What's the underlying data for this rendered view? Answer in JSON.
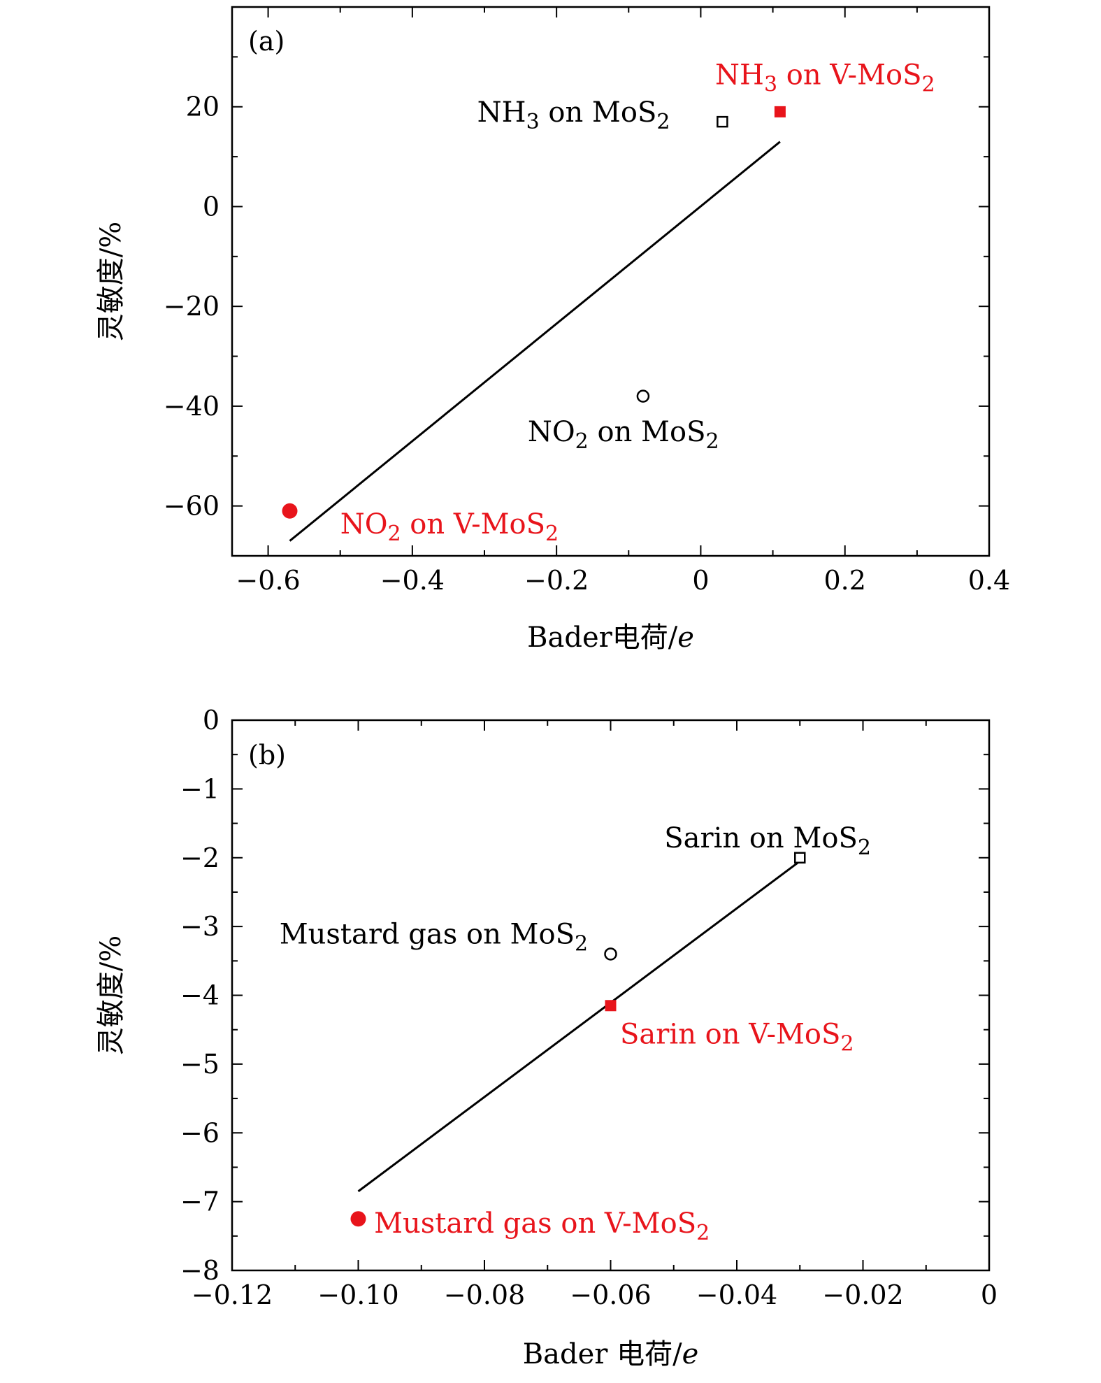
{
  "colors": {
    "highlight": "#e8141b",
    "base": "#000000"
  },
  "chart_data": [
    {
      "type": "scatter",
      "panel_label": "(a)",
      "xlabel": {
        "main": "Bader电荷/",
        "italic": "e"
      },
      "ylabel": "灵敏度/%",
      "xlim": [
        -0.65,
        0.4
      ],
      "ylim": [
        -70,
        40
      ],
      "xticks": [
        -0.6,
        -0.4,
        -0.2,
        0,
        0.2,
        0.4
      ],
      "xtick_labels": [
        "−0.6",
        "−0.4",
        "−0.2",
        "0",
        "0.2",
        "0.4"
      ],
      "yticks": [
        20,
        0,
        -20,
        -40,
        -60
      ],
      "ytick_labels": [
        "20",
        "0",
        "−20",
        "−40",
        "−60"
      ],
      "grid": false,
      "points": [
        {
          "label": "NH3 on MoS2",
          "x": 0.03,
          "y": 17,
          "marker": "open-square",
          "color": "#000000"
        },
        {
          "label": "NH3 on V-MoS2",
          "x": 0.11,
          "y": 19,
          "marker": "filled-square",
          "color": "#e8141b"
        },
        {
          "label": "NO2 on MoS2",
          "x": -0.08,
          "y": -38,
          "marker": "open-circle",
          "color": "#000000"
        },
        {
          "label": "NO2 on V-MoS2",
          "x": -0.57,
          "y": -61,
          "marker": "filled-circle",
          "color": "#e8141b"
        }
      ],
      "fit_line": {
        "x": [
          -0.57,
          0.11
        ],
        "y": [
          -67,
          13
        ]
      },
      "annotations": [
        {
          "main": "NH",
          "sub": "3",
          "rest": " on V-MoS",
          "sub2": "2",
          "color": "#e8141b",
          "x": 0.02,
          "y": 24.5
        },
        {
          "main": "NH",
          "sub": "3",
          "rest": " on MoS",
          "sub2": "2",
          "color": "#000000",
          "x": -0.31,
          "y": 17
        },
        {
          "main": "NO",
          "sub": "2",
          "rest": " on MoS",
          "sub2": "2",
          "color": "#000000",
          "x": -0.24,
          "y": -47
        },
        {
          "main": "NO",
          "sub": "2",
          "rest": " on V-MoS",
          "sub2": "2",
          "color": "#e8141b",
          "x": -0.5,
          "y": -65.5
        }
      ]
    },
    {
      "type": "scatter",
      "panel_label": "(b)",
      "xlabel": {
        "main": "Bader 电荷/",
        "italic": "e"
      },
      "ylabel": "灵敏度/%",
      "xlim": [
        -0.12,
        0
      ],
      "ylim": [
        -8,
        0
      ],
      "xticks": [
        -0.12,
        -0.1,
        -0.08,
        -0.06,
        -0.04,
        -0.02,
        0
      ],
      "xtick_labels": [
        "−0.12",
        "−0.10",
        "−0.08",
        "−0.06",
        "−0.04",
        "−0.02",
        "0"
      ],
      "yticks": [
        0,
        -1,
        -2,
        -3,
        -4,
        -5,
        -6,
        -7,
        -8
      ],
      "ytick_labels": [
        "0",
        "−1",
        "−2",
        "−3",
        "−4",
        "−5",
        "−6",
        "−7",
        "−8"
      ],
      "grid": false,
      "points": [
        {
          "label": "Sarin on MoS2",
          "x": -0.03,
          "y": -2,
          "marker": "open-square",
          "color": "#000000"
        },
        {
          "label": "Mustard gas on MoS2",
          "x": -0.06,
          "y": -3.4,
          "marker": "open-circle",
          "color": "#000000"
        },
        {
          "label": "Sarin on V-MoS2",
          "x": -0.06,
          "y": -4.15,
          "marker": "filled-square",
          "color": "#e8141b"
        },
        {
          "label": "Mustard gas on V-MoS2",
          "x": -0.1,
          "y": -7.25,
          "marker": "filled-circle",
          "color": "#e8141b"
        }
      ],
      "fit_line": {
        "x": [
          -0.1,
          -0.03
        ],
        "y": [
          -6.85,
          -2.05
        ]
      },
      "annotations": [
        {
          "main": "Sarin on MoS",
          "sub": "2",
          "rest": "",
          "sub2": "",
          "color": "#000000",
          "x": -0.0515,
          "y": -1.85
        },
        {
          "main": "Mustard gas on MoS",
          "sub": "2",
          "rest": "",
          "sub2": "",
          "color": "#000000",
          "x": -0.1125,
          "y": -3.25
        },
        {
          "main": "Sarin on V-MoS",
          "sub": "2",
          "rest": "",
          "sub2": "",
          "color": "#e8141b",
          "x": -0.0585,
          "y": -4.7
        },
        {
          "main": "Mustard gas on V-MoS",
          "sub": "2",
          "rest": "",
          "sub2": "",
          "color": "#e8141b",
          "x": -0.0975,
          "y": -7.45
        }
      ]
    }
  ]
}
